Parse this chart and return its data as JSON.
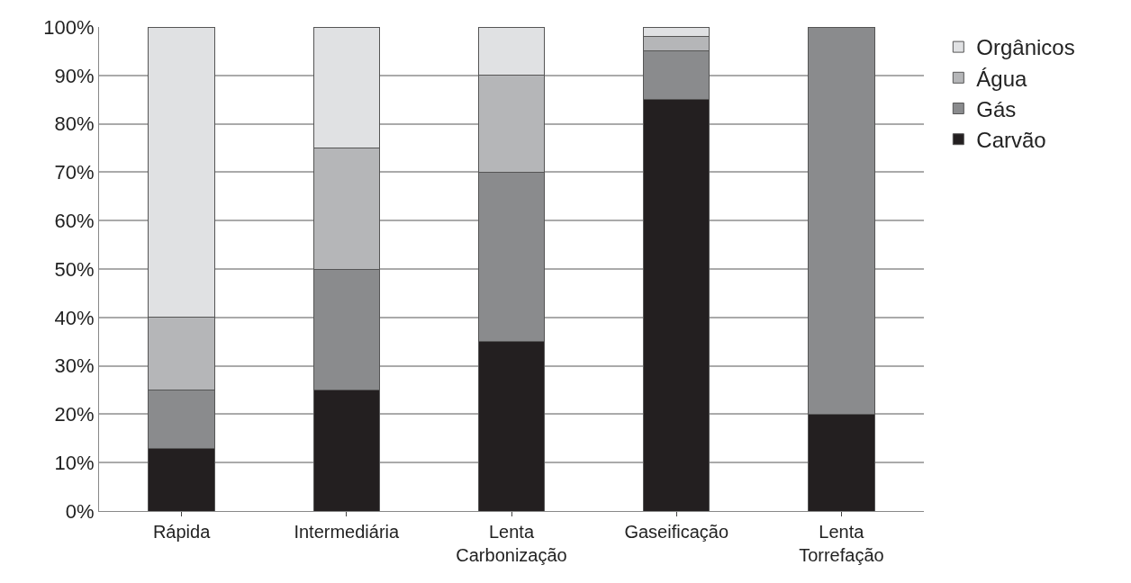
{
  "chart_data": {
    "type": "bar",
    "stacked": true,
    "categories": [
      "Rápida",
      "Intermediária",
      "Lenta\nCarbonização",
      "Gaseificação",
      "Lenta\nTorrefação"
    ],
    "series": [
      {
        "name": "Carvão",
        "color": "#231f20",
        "values": [
          13,
          25,
          35,
          85,
          20
        ]
      },
      {
        "name": "Gás",
        "color": "#8a8b8d",
        "values": [
          12,
          25,
          35,
          10,
          80
        ]
      },
      {
        "name": "Água",
        "color": "#b5b6b8",
        "values": [
          15,
          25,
          20,
          3,
          0
        ]
      },
      {
        "name": "Orgânicos",
        "color": "#e0e1e3",
        "values": [
          60,
          25,
          10,
          2,
          0
        ]
      }
    ],
    "ylim": [
      0,
      100
    ],
    "yticks": [
      {
        "value": 0,
        "label": "0%"
      },
      {
        "value": 10,
        "label": "10%"
      },
      {
        "value": 20,
        "label": "20%"
      },
      {
        "value": 30,
        "label": "30%"
      },
      {
        "value": 40,
        "label": "40%"
      },
      {
        "value": 50,
        "label": "50%"
      },
      {
        "value": 60,
        "label": "60%"
      },
      {
        "value": 70,
        "label": "70%"
      },
      {
        "value": 80,
        "label": "80%"
      },
      {
        "value": 90,
        "label": "90%"
      },
      {
        "value": 100,
        "label": "100%"
      }
    ],
    "grid": "y",
    "legend": "top right"
  }
}
